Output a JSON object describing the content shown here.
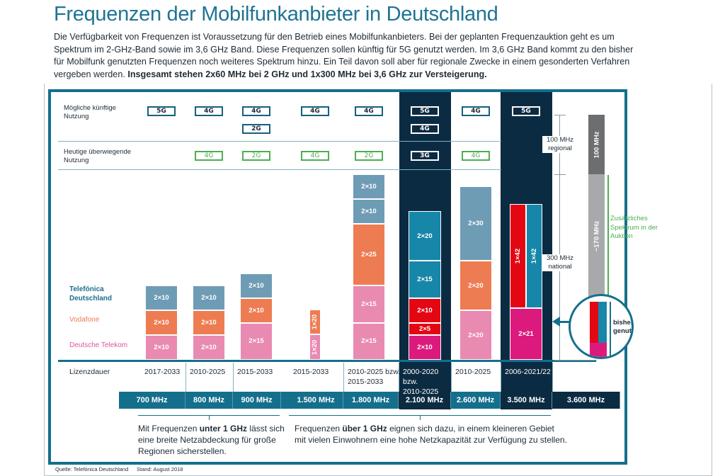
{
  "title": "Frequenzen der Mobilfunkanbieter in Deutschland",
  "intro": {
    "text": "Die Verfügbarkeit von Frequenzen ist Voraussetzung für den Betrieb eines Mobilfunkanbieters. Bei der geplanten Frequenzauktion geht es um Spektrum im 2-GHz-Band sowie im 3,6 GHz Band. Diese Frequenzen sollen künftig für 5G genutzt werden. Im 3,6 GHz Band kommt zu den bisher für Mobilfunk genutzten Frequenzen noch weiteres Spektrum hinzu. Ein Teil davon soll aber für regionale Zwecke in einem gesonderten Verfahren vergeben werden.",
    "bold": "Insgesamt stehen 2x60 MHz bei 2 GHz und 1x300 MHz bei 3,6 GHz zur Versteigerung."
  },
  "rows": {
    "future": "Mögliche künftige Nutzung",
    "today": "Heutige überwiegende Nutzung",
    "license": "Lizenzdauer"
  },
  "legend": {
    "telefonica": "Telefónica Deutschland",
    "vodafone": "Vodafone",
    "telekom": "Deutsche Telekom"
  },
  "colors": {
    "telefonica": "#6f9cb5",
    "vodafone": "#ee7c52",
    "telekom": "#e98ab2",
    "telefonica_strong": "#1787a9",
    "vodafone_strong": "#e30613",
    "telekom_strong": "#dc1a7d",
    "teal": "#146f8c",
    "dark": "#0b2b42",
    "green": "#4caf50"
  },
  "bands": [
    {
      "label": "700 MHz",
      "future": [
        "5G"
      ],
      "today": [],
      "license": "2017-2033",
      "license_extra": "",
      "highlight": false,
      "segments": [
        {
          "op": "telefonica",
          "v": "2×10"
        },
        {
          "op": "vodafone",
          "v": "2×10"
        },
        {
          "op": "telekom",
          "v": "2×10"
        }
      ]
    },
    {
      "label": "800 MHz",
      "future": [
        "4G"
      ],
      "today": [
        "4G"
      ],
      "license": "2010-2025",
      "license_extra": "",
      "highlight": false,
      "segments": [
        {
          "op": "telefonica",
          "v": "2×10"
        },
        {
          "op": "vodafone",
          "v": "2×10"
        },
        {
          "op": "telekom",
          "v": "2×10"
        }
      ]
    },
    {
      "label": "900 MHz",
      "future": [
        "4G",
        "2G"
      ],
      "today": [
        "2G"
      ],
      "license": "2015-2033",
      "license_extra": "",
      "highlight": false,
      "segments": [
        {
          "op": "telefonica",
          "v": "2×10"
        },
        {
          "op": "vodafone",
          "v": "2×10"
        },
        {
          "op": "telekom",
          "v": "2×15"
        }
      ]
    },
    {
      "label": "1.500 MHz",
      "future": [
        "4G"
      ],
      "today": [
        "4G"
      ],
      "license": "2015-2033",
      "license_extra": "",
      "highlight": false,
      "segments": [
        {
          "op": "vodafone",
          "v": "1×20"
        },
        {
          "op": "telekom",
          "v": "1×20"
        }
      ]
    },
    {
      "label": "1.800 MHz",
      "future": [
        "4G"
      ],
      "today": [
        "2G"
      ],
      "license": "2010-2025 bzw.",
      "license_extra": "2015-2033",
      "highlight": false,
      "segments": [
        {
          "op": "telefonica",
          "v": "2×10"
        },
        {
          "op": "telefonica",
          "v": "2×10"
        },
        {
          "op": "vodafone",
          "v": "2×25"
        },
        {
          "op": "telekom",
          "v": "2×15"
        },
        {
          "op": "telekom",
          "v": "2×15"
        }
      ]
    },
    {
      "label": "2.100 MHz",
      "future": [
        "5G",
        "4G"
      ],
      "today": [
        "3G"
      ],
      "license": "2000-2020 bzw.",
      "license_extra": "2010-2025",
      "highlight": true,
      "segments": [
        {
          "op": "telefonica",
          "v": "2×20"
        },
        {
          "op": "telefonica",
          "v": "2×15"
        },
        {
          "op": "vodafone",
          "v": "2×10"
        },
        {
          "op": "vodafone",
          "v": "2×5"
        },
        {
          "op": "telekom",
          "v": "2×10"
        }
      ]
    },
    {
      "label": "2.600 MHz",
      "future": [
        "4G"
      ],
      "today": [
        "4G"
      ],
      "license": "2010-2025",
      "license_extra": "",
      "highlight": false,
      "segments": [
        {
          "op": "telefonica",
          "v": "2×30"
        },
        {
          "op": "vodafone",
          "v": "2×20"
        },
        {
          "op": "telekom",
          "v": "2×20"
        }
      ]
    },
    {
      "label": "3.500 MHz",
      "future": [
        "5G"
      ],
      "today": [],
      "license": "2006-2021/22",
      "license_extra": "",
      "highlight": true,
      "segments": [
        {
          "op": "vodafone",
          "v": "1×42",
          "side": true
        },
        {
          "op": "telefonica",
          "v": "1×42",
          "side": true
        },
        {
          "op": "telekom",
          "v": "2×21"
        }
      ]
    },
    {
      "label": "3.600 MHz",
      "future": [],
      "today": [],
      "license": "",
      "license_extra": "",
      "highlight": false,
      "segments": []
    }
  ],
  "spectrum36": {
    "regional_label": "100 MHz regional",
    "regional_bar": "100 MHz",
    "national_label": "300 MHz national",
    "additional_bar": "~170 MHz",
    "additional_label": "Zusätzliches Spektrum in der Auktion",
    "used_label": "bisher genutzt"
  },
  "notes": {
    "below_pre": "Mit Frequenzen ",
    "below_bold": "unter 1 GHz",
    "below_post": " lässt sich eine breite Netzabdeckung für große Regionen sicherstellen.",
    "above_pre": "Frequenzen ",
    "above_bold": "über 1 GHz",
    "above_post": " eignen sich dazu, in einem kleineren Gebiet mit vielen Einwohnern eine hohe Netzkapazität zur Verfügung zu stellen."
  },
  "footer": {
    "source": "Quelle: Telefónica Deutschland",
    "date": "Stand: August 2018"
  }
}
